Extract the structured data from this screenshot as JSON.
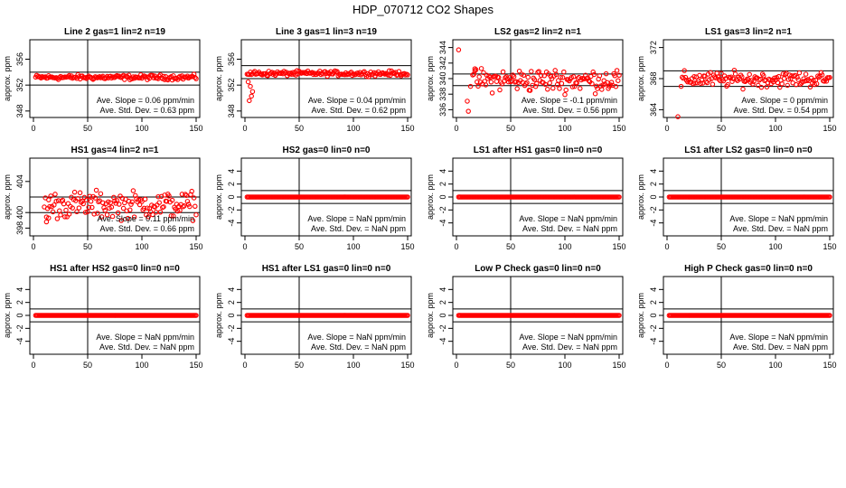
{
  "figure_title": "HDP_070712  CO2 Shapes",
  "chart_data": [
    {
      "type": "scatter",
      "title": "Line 2 gas=1 lin=2 n=19",
      "ylabel": "approx. ppm",
      "xlim": [
        0,
        150
      ],
      "ylim": [
        347,
        359
      ],
      "x_ticks": [
        0,
        50,
        100,
        150
      ],
      "y_ticks": [
        348,
        352,
        356
      ],
      "hlines": [
        352.0,
        354.0
      ],
      "vline": 50,
      "series": [
        {
          "x_range": [
            2,
            150
          ],
          "mean": 353.2,
          "spread": 0.3,
          "outliers": []
        }
      ],
      "annotation": {
        "slope_label": "Ave. Slope =",
        "slope_value": "0.06",
        "slope_unit": "ppm/min",
        "sd_label": "Ave. Std. Dev. =",
        "sd_value": "0.63",
        "sd_unit": "ppm"
      }
    },
    {
      "type": "scatter",
      "title": "Line 3 gas=1 lin=3 n=19",
      "ylabel": "approx. ppm",
      "xlim": [
        0,
        150
      ],
      "ylim": [
        347,
        359
      ],
      "x_ticks": [
        0,
        50,
        100,
        150
      ],
      "y_ticks": [
        348,
        352,
        356
      ],
      "hlines": [
        353.0,
        355.0
      ],
      "vline": 50,
      "series": [
        {
          "x_range": [
            2,
            150
          ],
          "mean": 353.8,
          "spread": 0.3,
          "outliers": [
            [
              3,
              352.5
            ],
            [
              5,
              351.8
            ],
            [
              6,
              350.3
            ],
            [
              7,
              351.0
            ],
            [
              4,
              349.6
            ]
          ]
        }
      ],
      "annotation": {
        "slope_label": "Ave. Slope =",
        "slope_value": "0.04",
        "slope_unit": "ppm/min",
        "sd_label": "Ave. Std. Dev. =",
        "sd_value": "0.62",
        "sd_unit": "ppm"
      }
    },
    {
      "type": "scatter",
      "title": "LS2 gas=2 lin=2 n=1",
      "ylabel": "approx. ppm",
      "xlim": [
        0,
        150
      ],
      "ylim": [
        335,
        345
      ],
      "x_ticks": [
        0,
        50,
        100,
        150
      ],
      "y_ticks": [
        336,
        338,
        340,
        342,
        344
      ],
      "hlines": [
        339.1,
        340.6
      ],
      "vline": 50,
      "series": [
        {
          "x_range": [
            15,
            150
          ],
          "mean": 339.8,
          "spread": 1.2,
          "outliers": [
            [
              2,
              343.7
            ],
            [
              10,
              337.1
            ],
            [
              11,
              335.8
            ],
            [
              13,
              339.0
            ],
            [
              17,
              341.0
            ]
          ]
        }
      ],
      "annotation": {
        "slope_label": "Ave. Slope =",
        "slope_value": "-0.1",
        "slope_unit": "ppm/min",
        "sd_label": "Ave. Std. Dev. =",
        "sd_value": "0.56",
        "sd_unit": "ppm"
      }
    },
    {
      "type": "scatter",
      "title": "LS1 gas=3 lin=2 n=1",
      "ylabel": "approx. ppm",
      "xlim": [
        0,
        150
      ],
      "ylim": [
        363,
        373
      ],
      "x_ticks": [
        0,
        50,
        100,
        150
      ],
      "y_ticks": [
        364,
        368,
        372
      ],
      "hlines": [
        367.0,
        369.0
      ],
      "vline": 50,
      "series": [
        {
          "x_range": [
            14,
            150
          ],
          "mean": 367.9,
          "spread": 0.8,
          "outliers": [
            [
              10,
              363.1
            ],
            [
              13,
              367.0
            ]
          ]
        }
      ],
      "annotation": {
        "slope_label": "Ave. Slope =",
        "slope_value": "0",
        "slope_unit": "ppm/min",
        "sd_label": "Ave. Std. Dev. =",
        "sd_value": "0.54",
        "sd_unit": "ppm"
      }
    },
    {
      "type": "scatter",
      "title": "HS1 gas=4 lin=2 n=1",
      "ylabel": "approx. ppm",
      "xlim": [
        0,
        150
      ],
      "ylim": [
        397,
        407
      ],
      "x_ticks": [
        0,
        50,
        100,
        150
      ],
      "y_ticks": [
        398,
        400,
        404
      ],
      "hlines": [
        400.0,
        402.0
      ],
      "vline": 50,
      "series": [
        {
          "x_range": [
            10,
            150
          ],
          "mean": 401.0,
          "spread": 1.4,
          "outliers": [
            [
              12,
              398.8
            ],
            [
              14,
              399.3
            ]
          ]
        }
      ],
      "annotation": {
        "slope_label": "Ave. Slope =",
        "slope_value": "0.11",
        "slope_unit": "ppm/min",
        "sd_label": "Ave. Std. Dev. =",
        "sd_value": "0.66",
        "sd_unit": "ppm"
      }
    },
    {
      "type": "scatter",
      "title": "HS2 gas=0 lin=0 n=0",
      "ylabel": "approx. ppm",
      "xlim": [
        0,
        150
      ],
      "ylim": [
        -6,
        6
      ],
      "x_ticks": [
        0,
        50,
        100,
        150
      ],
      "y_ticks": [
        -4,
        -2,
        0,
        2,
        4
      ],
      "hlines": [
        -1,
        1
      ],
      "vline": 50,
      "series": [
        {
          "x_range": [
            2,
            150
          ],
          "mean": 0,
          "spread": 0,
          "outliers": []
        }
      ],
      "annotation": {
        "slope_label": "Ave. Slope =",
        "slope_value": "NaN",
        "slope_unit": "ppm/min",
        "sd_label": "Ave. Std. Dev. =",
        "sd_value": "NaN",
        "sd_unit": "ppm"
      }
    },
    {
      "type": "scatter",
      "title": "LS1 after HS1 gas=0 lin=0 n=0",
      "ylabel": "approx. ppm",
      "xlim": [
        0,
        150
      ],
      "ylim": [
        -6,
        6
      ],
      "x_ticks": [
        0,
        50,
        100,
        150
      ],
      "y_ticks": [
        -4,
        -2,
        0,
        2,
        4
      ],
      "hlines": [
        -1,
        1
      ],
      "vline": 50,
      "series": [
        {
          "x_range": [
            2,
            150
          ],
          "mean": 0,
          "spread": 0,
          "outliers": []
        }
      ],
      "annotation": {
        "slope_label": "Ave. Slope =",
        "slope_value": "NaN",
        "slope_unit": "ppm/min",
        "sd_label": "Ave. Std. Dev. =",
        "sd_value": "NaN",
        "sd_unit": "ppm"
      }
    },
    {
      "type": "scatter",
      "title": "LS1 after LS2 gas=0 lin=0 n=0",
      "ylabel": "approx. ppm",
      "xlim": [
        0,
        150
      ],
      "ylim": [
        -6,
        6
      ],
      "x_ticks": [
        0,
        50,
        100,
        150
      ],
      "y_ticks": [
        -4,
        -2,
        0,
        2,
        4
      ],
      "hlines": [
        -1,
        1
      ],
      "vline": 50,
      "series": [
        {
          "x_range": [
            2,
            150
          ],
          "mean": 0,
          "spread": 0,
          "outliers": []
        }
      ],
      "annotation": {
        "slope_label": "Ave. Slope =",
        "slope_value": "NaN",
        "slope_unit": "ppm/min",
        "sd_label": "Ave. Std. Dev. =",
        "sd_value": "NaN",
        "sd_unit": "ppm"
      }
    },
    {
      "type": "scatter",
      "title": "HS1 after HS2 gas=0 lin=0 n=0",
      "ylabel": "approx. ppm",
      "xlim": [
        0,
        150
      ],
      "ylim": [
        -6,
        6
      ],
      "x_ticks": [
        0,
        50,
        100,
        150
      ],
      "y_ticks": [
        -4,
        -2,
        0,
        2,
        4
      ],
      "hlines": [
        -1,
        1
      ],
      "vline": 50,
      "series": [
        {
          "x_range": [
            2,
            150
          ],
          "mean": 0,
          "spread": 0,
          "outliers": []
        }
      ],
      "annotation": {
        "slope_label": "Ave. Slope =",
        "slope_value": "NaN",
        "slope_unit": "ppm/min",
        "sd_label": "Ave. Std. Dev. =",
        "sd_value": "NaN",
        "sd_unit": "ppm"
      }
    },
    {
      "type": "scatter",
      "title": "HS1 after LS1 gas=0 lin=0 n=0",
      "ylabel": "approx. ppm",
      "xlim": [
        0,
        150
      ],
      "ylim": [
        -6,
        6
      ],
      "x_ticks": [
        0,
        50,
        100,
        150
      ],
      "y_ticks": [
        -4,
        -2,
        0,
        2,
        4
      ],
      "hlines": [
        -1,
        1
      ],
      "vline": 50,
      "series": [
        {
          "x_range": [
            2,
            150
          ],
          "mean": 0,
          "spread": 0,
          "outliers": []
        }
      ],
      "annotation": {
        "slope_label": "Ave. Slope =",
        "slope_value": "NaN",
        "slope_unit": "ppm/min",
        "sd_label": "Ave. Std. Dev. =",
        "sd_value": "NaN",
        "sd_unit": "ppm"
      }
    },
    {
      "type": "scatter",
      "title": "Low P Check gas=0 lin=0 n=0",
      "ylabel": "approx. ppm",
      "xlim": [
        0,
        150
      ],
      "ylim": [
        -6,
        6
      ],
      "x_ticks": [
        0,
        50,
        100,
        150
      ],
      "y_ticks": [
        -4,
        -2,
        0,
        2,
        4
      ],
      "hlines": [
        -1,
        1
      ],
      "vline": 50,
      "series": [
        {
          "x_range": [
            2,
            150
          ],
          "mean": 0,
          "spread": 0,
          "outliers": []
        }
      ],
      "annotation": {
        "slope_label": "Ave. Slope =",
        "slope_value": "NaN",
        "slope_unit": "ppm/min",
        "sd_label": "Ave. Std. Dev. =",
        "sd_value": "NaN",
        "sd_unit": "ppm"
      }
    },
    {
      "type": "scatter",
      "title": "High P Check gas=0 lin=0 n=0",
      "ylabel": "approx. ppm",
      "xlim": [
        0,
        150
      ],
      "ylim": [
        -6,
        6
      ],
      "x_ticks": [
        0,
        50,
        100,
        150
      ],
      "y_ticks": [
        -4,
        -2,
        0,
        2,
        4
      ],
      "hlines": [
        -1,
        1
      ],
      "vline": 50,
      "series": [
        {
          "x_range": [
            2,
            150
          ],
          "mean": 0,
          "spread": 0,
          "outliers": []
        }
      ],
      "annotation": {
        "slope_label": "Ave. Slope =",
        "slope_value": "NaN",
        "slope_unit": "ppm/min",
        "sd_label": "Ave. Std. Dev. =",
        "sd_value": "NaN",
        "sd_unit": "ppm"
      }
    }
  ],
  "colors": {
    "points": "#ff0000",
    "axes": "#000000",
    "background": "#ffffff"
  }
}
